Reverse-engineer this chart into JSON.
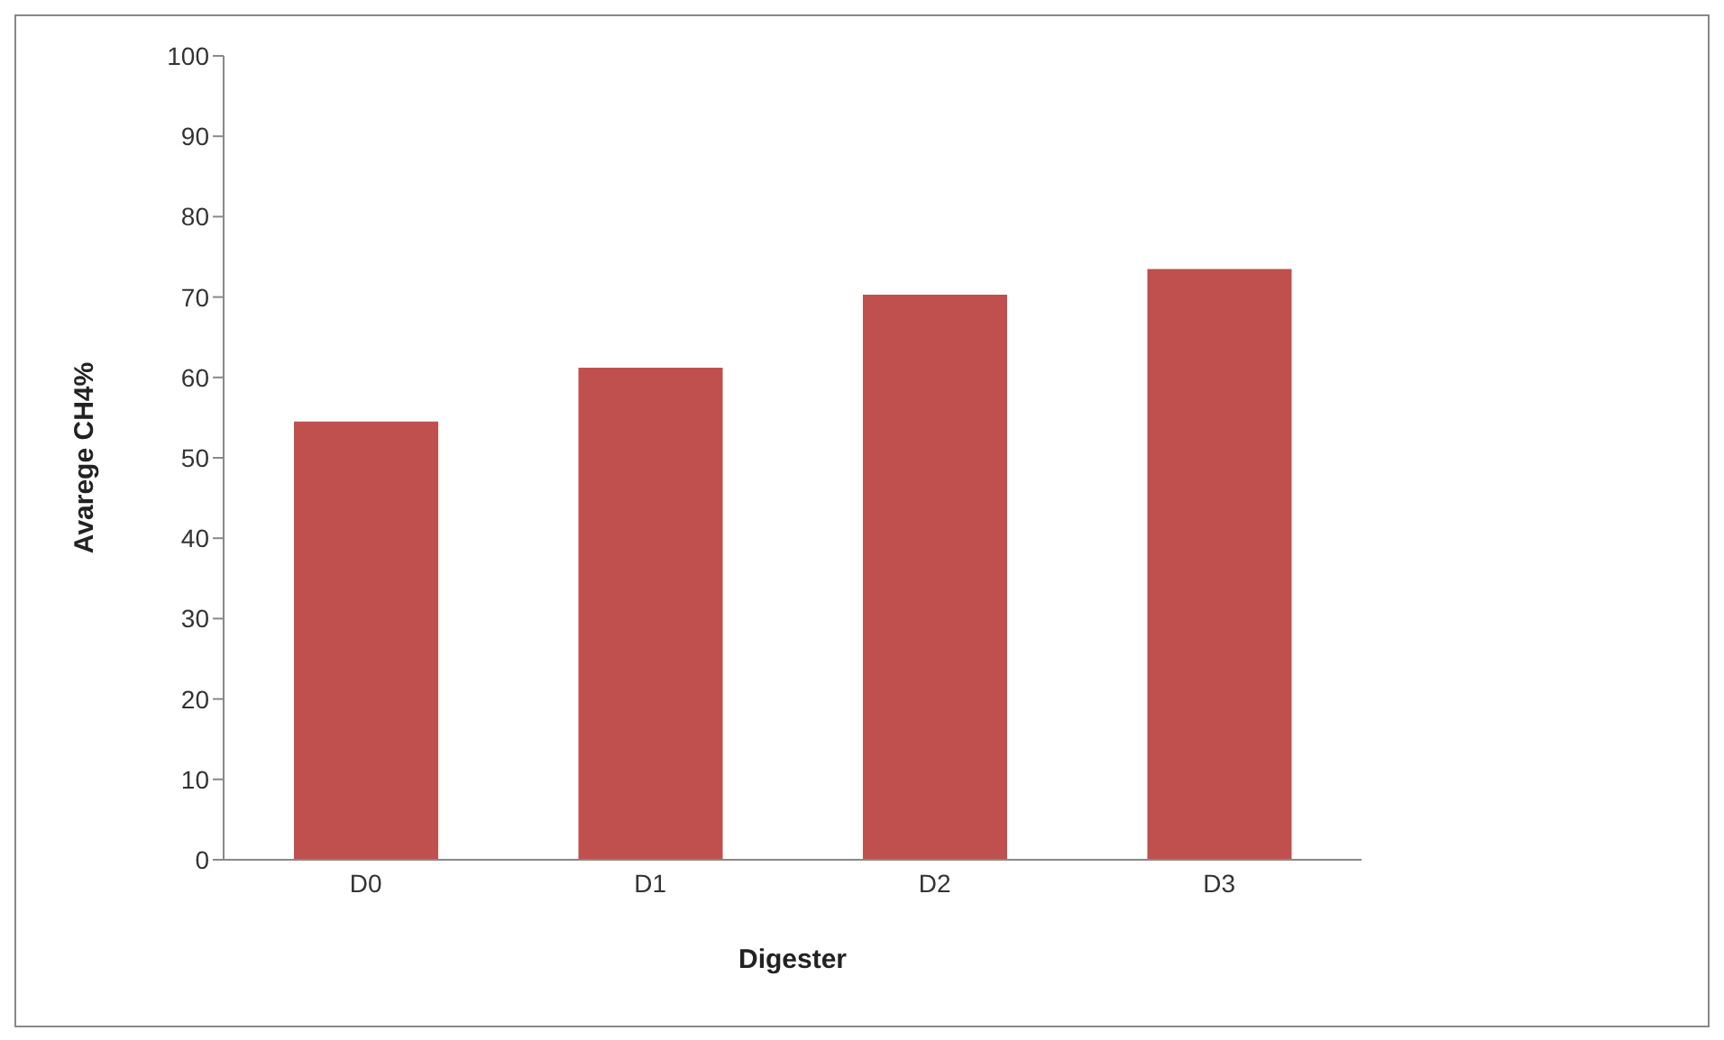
{
  "chart_data": {
    "type": "bar",
    "xlabel": "Digester",
    "ylabel": "Avarege CH4%",
    "categories": [
      "D0",
      "D1",
      "D2",
      "D3"
    ],
    "values": [
      54.5,
      61.2,
      70.3,
      73.5
    ],
    "color": "#c0504d",
    "ylim": [
      0,
      100
    ],
    "yticks": [
      0,
      10,
      20,
      30,
      40,
      50,
      60,
      70,
      80,
      90,
      100
    ],
    "grid": false
  }
}
